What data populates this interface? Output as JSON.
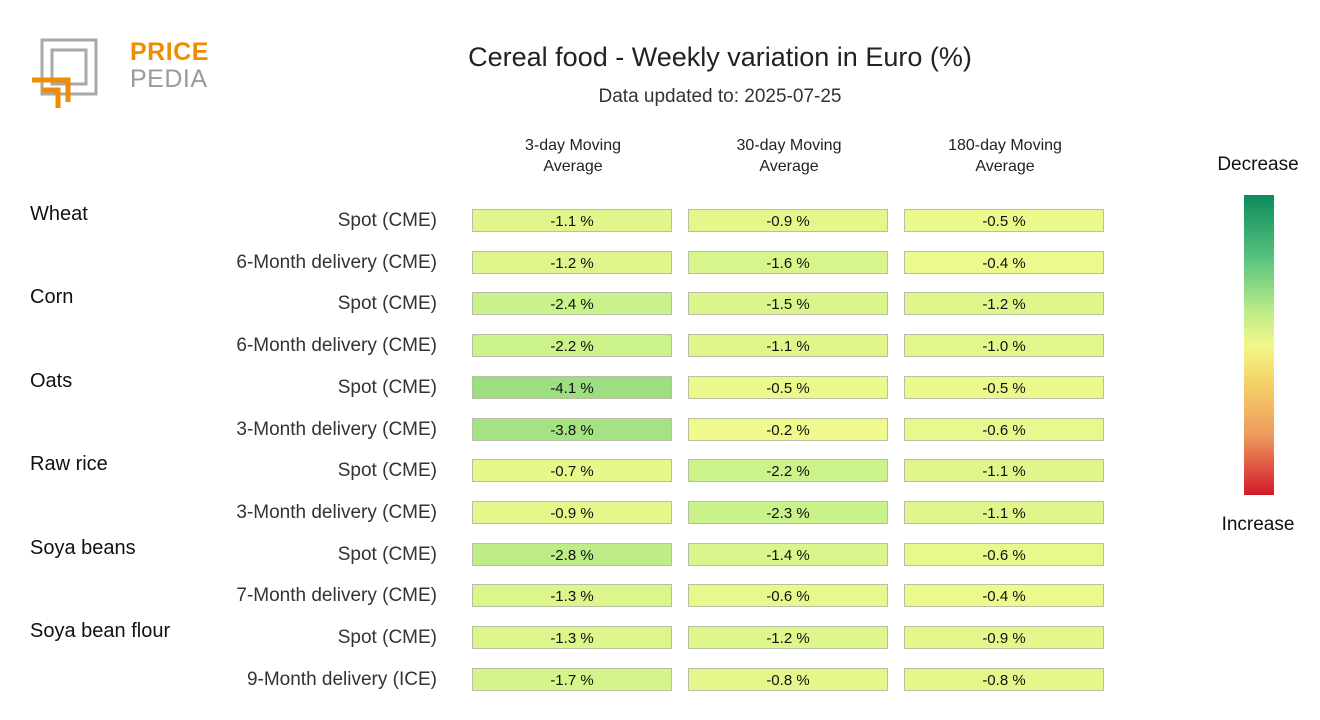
{
  "logo": {
    "text_top": "PRICE",
    "text_bottom": "PEDIA"
  },
  "header": {
    "title": "Cereal food - Weekly variation in Euro (%)",
    "subtitle": "Data updated to: 2025-07-25"
  },
  "legend": {
    "top_label": "Decrease",
    "bottom_label": "Increase"
  },
  "colors": {
    "brand_orange": "#f08c00",
    "brand_gray": "#9a9a9a",
    "decrease": "#0c8a5c",
    "neutral": "#f2f78a",
    "increase": "#d3192b"
  },
  "chart_data": {
    "type": "heatmap",
    "title": "Cereal food - Weekly variation in Euro (%)",
    "subtitle": "Data updated to: 2025-07-25",
    "columns": [
      "3-day Moving Average",
      "30-day Moving Average",
      "180-day Moving Average"
    ],
    "column_labels": [
      [
        "3-day Moving",
        "Average"
      ],
      [
        "30-day Moving",
        "Average"
      ],
      [
        "180-day Moving",
        "Average"
      ]
    ],
    "unit": "%",
    "rows": [
      {
        "group": "Wheat",
        "label": "Spot (CME)",
        "values": [
          -1.1,
          -0.9,
          -0.5
        ]
      },
      {
        "group": "",
        "label": "6-Month delivery (CME)",
        "values": [
          -1.2,
          -1.6,
          -0.4
        ]
      },
      {
        "group": "Corn",
        "label": "Spot (CME)",
        "values": [
          -2.4,
          -1.5,
          -1.2
        ]
      },
      {
        "group": "",
        "label": "6-Month delivery (CME)",
        "values": [
          -2.2,
          -1.1,
          -1.0
        ]
      },
      {
        "group": "Oats",
        "label": "Spot (CME)",
        "values": [
          -4.1,
          -0.5,
          -0.5
        ]
      },
      {
        "group": "",
        "label": "3-Month delivery (CME)",
        "values": [
          -3.8,
          -0.2,
          -0.6
        ]
      },
      {
        "group": "Raw rice",
        "label": "Spot (CME)",
        "values": [
          -0.7,
          -2.2,
          -1.1
        ]
      },
      {
        "group": "",
        "label": "3-Month delivery (CME)",
        "values": [
          -0.9,
          -2.3,
          -1.1
        ]
      },
      {
        "group": "Soya beans",
        "label": "Spot (CME)",
        "values": [
          -2.8,
          -1.4,
          -0.6
        ]
      },
      {
        "group": "",
        "label": "7-Month delivery (CME)",
        "values": [
          -1.3,
          -0.6,
          -0.4
        ]
      },
      {
        "group": "Soya bean flour",
        "label": "Spot (CME)",
        "values": [
          -1.3,
          -1.2,
          -0.9
        ]
      },
      {
        "group": "",
        "label": "9-Month delivery (ICE)",
        "values": [
          -1.7,
          -0.8,
          -0.8
        ]
      }
    ]
  }
}
